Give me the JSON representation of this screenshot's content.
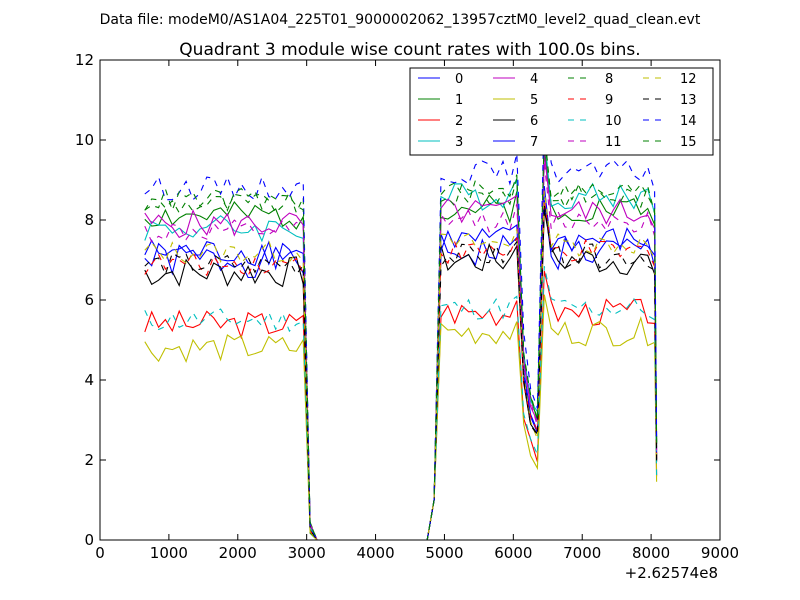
{
  "chart_data": {
    "type": "line",
    "suptitle": "Data file: modeM0/AS1A04_225T01_9000002062_13957cztM0_level2_quad_clean.evt",
    "title": "Quadrant 3 module wise count rates with 100.0s bins.",
    "xlabel": "",
    "ylabel": "",
    "x_offset_label": "+2.62574e8",
    "xlim": [
      0,
      9000
    ],
    "ylim": [
      0,
      12
    ],
    "xticks": [
      0,
      1000,
      2000,
      3000,
      4000,
      5000,
      6000,
      7000,
      8000,
      9000
    ],
    "yticks": [
      0,
      2,
      4,
      6,
      8,
      10,
      12
    ],
    "grid": false,
    "legend_position": "top-right",
    "legend_columns": 4,
    "bins": {
      "segments": [
        [
          650,
          2950
        ],
        [
          4850,
          8050
        ]
      ],
      "step": 100,
      "gap_x": [
        3050,
        3150,
        3250,
        3350,
        3450,
        3550,
        3650,
        3750,
        3850,
        3950,
        4050,
        4150,
        4250,
        4350,
        4450,
        4550,
        4650,
        4750
      ],
      "dip_x": [
        6150,
        6250,
        6350
      ],
      "dip_values": [
        0.55,
        0.42,
        0.36
      ]
    },
    "series": [
      {
        "name": "0",
        "color": "#0000ff",
        "dash": "solid",
        "base_seg1": 7.0,
        "base_seg2": 7.2,
        "spread": 0.45,
        "seed": 1
      },
      {
        "name": "1",
        "color": "#008000",
        "dash": "solid",
        "base_seg1": 8.1,
        "base_seg2": 8.3,
        "spread": 0.35,
        "seed": 2
      },
      {
        "name": "2",
        "color": "#ff0000",
        "dash": "solid",
        "base_seg1": 5.4,
        "base_seg2": 5.7,
        "spread": 0.35,
        "seed": 3
      },
      {
        "name": "3",
        "color": "#00bfbf",
        "dash": "solid",
        "base_seg1": 7.8,
        "base_seg2": 8.6,
        "spread": 0.35,
        "seed": 4
      },
      {
        "name": "4",
        "color": "#bf00bf",
        "dash": "solid",
        "base_seg1": 7.9,
        "base_seg2": 8.2,
        "spread": 0.35,
        "seed": 5
      },
      {
        "name": "5",
        "color": "#bfbf00",
        "dash": "solid",
        "base_seg1": 4.8,
        "base_seg2": 5.2,
        "spread": 0.35,
        "seed": 6
      },
      {
        "name": "6",
        "color": "#000000",
        "dash": "solid",
        "base_seg1": 6.7,
        "base_seg2": 7.0,
        "spread": 0.4,
        "seed": 7
      },
      {
        "name": "7",
        "color": "#0000ff",
        "dash": "solid",
        "base_seg1": 7.2,
        "base_seg2": 7.5,
        "spread": 0.35,
        "seed": 8
      },
      {
        "name": "8",
        "color": "#008000",
        "dash": "dashed",
        "base_seg1": 8.4,
        "base_seg2": 8.6,
        "spread": 0.3,
        "seed": 9
      },
      {
        "name": "9",
        "color": "#ff0000",
        "dash": "dashed",
        "base_seg1": 6.9,
        "base_seg2": 7.2,
        "spread": 0.3,
        "seed": 10
      },
      {
        "name": "10",
        "color": "#00bfbf",
        "dash": "dashed",
        "base_seg1": 5.5,
        "base_seg2": 5.8,
        "spread": 0.3,
        "seed": 11
      },
      {
        "name": "11",
        "color": "#bf00bf",
        "dash": "dashed",
        "base_seg1": 7.7,
        "base_seg2": 8.0,
        "spread": 0.3,
        "seed": 12
      },
      {
        "name": "12",
        "color": "#bfbf00",
        "dash": "dashed",
        "base_seg1": 7.2,
        "base_seg2": 7.4,
        "spread": 0.3,
        "seed": 13
      },
      {
        "name": "13",
        "color": "#000000",
        "dash": "dashed",
        "base_seg1": 6.9,
        "base_seg2": 7.1,
        "spread": 0.3,
        "seed": 14
      },
      {
        "name": "14",
        "color": "#0000ff",
        "dash": "dashed",
        "base_seg1": 8.8,
        "base_seg2": 9.2,
        "spread": 0.3,
        "seed": 15
      },
      {
        "name": "15",
        "color": "#008000",
        "dash": "dashed",
        "base_seg1": 8.5,
        "base_seg2": 8.7,
        "spread": 0.3,
        "seed": 16
      }
    ]
  }
}
